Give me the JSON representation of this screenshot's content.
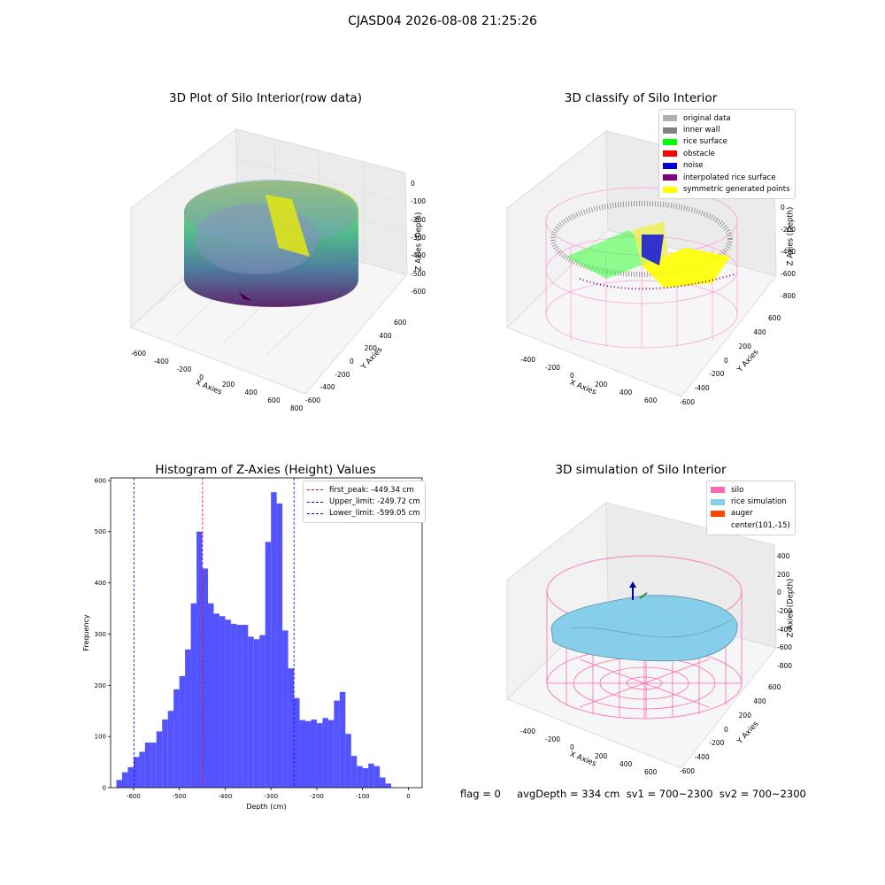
{
  "header": {
    "title": "CJASD04 2026-08-08 21:25:26"
  },
  "panels": {
    "raw": {
      "title": "3D Plot of Silo Interior(row data)",
      "xlabel": "X Axies",
      "ylabel": "Y Axies",
      "zlabel": "Z Axies (Depth)",
      "xticks": [
        "-600",
        "-400",
        "-200",
        "0",
        "200",
        "400",
        "600",
        "800"
      ],
      "yticks": [
        "600",
        "400",
        "200",
        "0",
        "-200",
        "-400",
        "-600"
      ],
      "zticks": [
        "0",
        "-100",
        "-200",
        "-300",
        "-400",
        "-500",
        "-600"
      ]
    },
    "classify": {
      "title": "3D classify of Silo Interior",
      "xlabel": "X Axies",
      "ylabel": "Y Axies",
      "zlabel": "Z Axies (Depth)",
      "xticks": [
        "-400",
        "-200",
        "0",
        "200",
        "400",
        "600"
      ],
      "yticks": [
        "600",
        "400",
        "200",
        "0",
        "-200",
        "-400",
        "-600"
      ],
      "zticks": [
        "200",
        "0",
        "-200",
        "-400",
        "-600",
        "-800"
      ],
      "legend": [
        {
          "label": "original data",
          "color": "#b0b0b0"
        },
        {
          "label": "inner wall",
          "color": "#808080"
        },
        {
          "label": "rice surface",
          "color": "#00ff00"
        },
        {
          "label": "obstacle",
          "color": "#ff0000"
        },
        {
          "label": "noise",
          "color": "#0000dd"
        },
        {
          "label": "interpolated rice surface",
          "color": "#800080"
        },
        {
          "label": "symmetric generated points",
          "color": "#ffff00"
        }
      ]
    },
    "simulation": {
      "title": "3D simulation of Silo Interior",
      "xlabel": "X Axies",
      "ylabel": "Y Axies",
      "zlabel": "Z Axies (Depth)",
      "xticks": [
        "-400",
        "-200",
        "0",
        "200",
        "400",
        "600"
      ],
      "yticks": [
        "600",
        "400",
        "200",
        "0",
        "-200",
        "-400",
        "-600"
      ],
      "zticks": [
        "400",
        "200",
        "0",
        "-200",
        "-400",
        "-600",
        "-800"
      ],
      "legend": [
        {
          "label": "silo",
          "color": "#ff69b4"
        },
        {
          "label": "rice simulation",
          "color": "#87ceeb"
        },
        {
          "label": "auger",
          "color": "#ff4500"
        },
        {
          "label": "center(101,-15)",
          "color": "#ffffff"
        }
      ]
    }
  },
  "chart_data": [
    {
      "type": "scatter",
      "title": "3D Plot of Silo Interior(row data)",
      "xlabel": "X Axies",
      "ylabel": "Y Axies",
      "zlabel": "Z Axies (Depth)",
      "xlim": [
        -650,
        800
      ],
      "ylim": [
        -650,
        650
      ],
      "zlim": [
        -650,
        20
      ]
    },
    {
      "type": "scatter",
      "title": "3D classify of Silo Interior",
      "xlabel": "X Axies",
      "ylabel": "Y Axies",
      "zlabel": "Z Axies (Depth)",
      "series": [
        {
          "name": "original data"
        },
        {
          "name": "inner wall"
        },
        {
          "name": "rice surface"
        },
        {
          "name": "obstacle"
        },
        {
          "name": "noise"
        },
        {
          "name": "interpolated rice surface"
        },
        {
          "name": "symmetric generated points"
        }
      ]
    },
    {
      "type": "bar",
      "title": "Histogram of Z-Axies (Height) Values",
      "xlabel": "Depth (cm)",
      "ylabel": "Frequency",
      "xlim": [
        -650,
        30
      ],
      "ylim": [
        0,
        605
      ],
      "xticks": [
        -600,
        -500,
        -400,
        -300,
        -200,
        -100,
        0
      ],
      "yticks": [
        0,
        100,
        200,
        300,
        400,
        500,
        600
      ],
      "bin_width": 12.5,
      "bin_start": -637.5,
      "values": [
        15,
        30,
        40,
        60,
        70,
        88,
        88,
        110,
        133,
        150,
        192,
        218,
        270,
        360,
        500,
        428,
        360,
        340,
        335,
        328,
        320,
        318,
        318,
        295,
        290,
        298,
        480,
        577,
        555,
        307,
        233,
        175,
        132,
        130,
        133,
        126,
        136,
        132,
        170,
        187,
        105,
        62,
        42,
        38,
        47,
        42,
        20,
        8
      ],
      "vlines": [
        {
          "label": "first_peak: -449.34 cm",
          "x": -449.34,
          "color": "#ff0000"
        },
        {
          "label": "Upper_limit: -249.72 cm",
          "x": -249.72,
          "color": "#0000ff"
        },
        {
          "label": "Lower_limit: -599.05 cm",
          "x": -599.05,
          "color": "#0000ff"
        }
      ],
      "bar_color": "#4a4aff"
    },
    {
      "type": "scatter",
      "title": "3D simulation of Silo Interior",
      "xlabel": "X Axies",
      "ylabel": "Y Axies",
      "zlabel": "Z Axies (Depth)",
      "series": [
        {
          "name": "silo"
        },
        {
          "name": "rice simulation"
        },
        {
          "name": "auger"
        },
        {
          "name": "center(101,-15)"
        }
      ]
    }
  ],
  "footer": {
    "text": "flag = 0     avgDepth = 334 cm  sv1 = 700~2300  sv2 = 700~2300"
  }
}
